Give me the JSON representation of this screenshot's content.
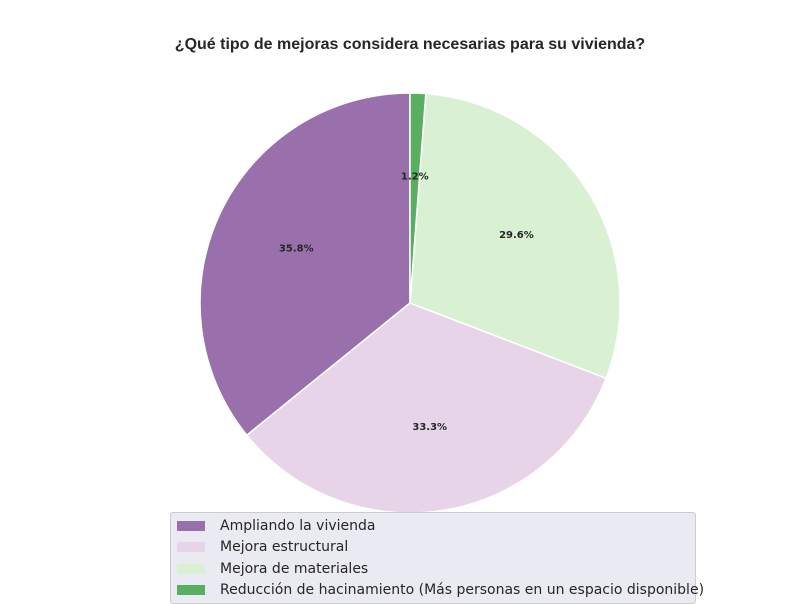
{
  "chart_data": {
    "type": "pie",
    "title": "¿Qué tipo de mejoras considera necesarias para su vivienda?",
    "slices": [
      {
        "label": "Ampliando la vivienda",
        "value": 35.8,
        "value_label": "35.8%",
        "color": "#9970ab"
      },
      {
        "label": "Mejora estructural",
        "value": 33.3,
        "value_label": "33.3%",
        "color": "#e7d4e8"
      },
      {
        "label": "Mejora de materiales",
        "value": 29.6,
        "value_label": "29.6%",
        "color": "#d9f0d3"
      },
      {
        "label": "Reducción de hacinamiento (Más personas en un espacio disponible)",
        "value": 1.2,
        "value_label": "1.2%",
        "color": "#5aae61"
      }
    ],
    "start_angle_deg": 90,
    "direction": "counterclockwise",
    "legend_placement": "bottom"
  }
}
